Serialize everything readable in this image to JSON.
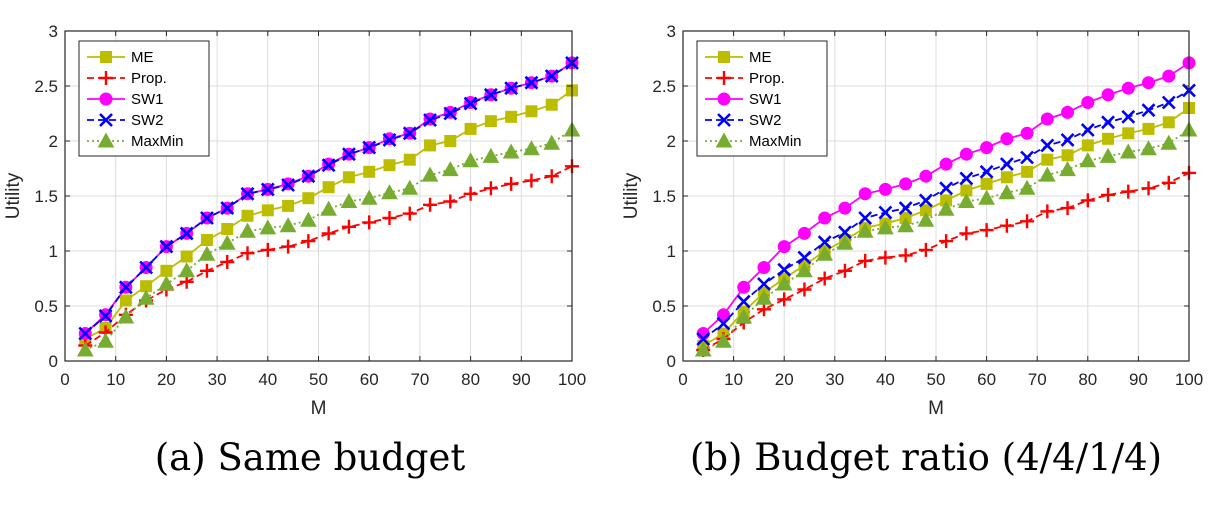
{
  "chart_data": [
    {
      "type": "line",
      "caption": "(a) Same budget",
      "xlabel": "M",
      "ylabel": "Utility",
      "xlim": [
        0,
        100
      ],
      "ylim": [
        0,
        3
      ],
      "xticks": [
        "0",
        "10",
        "20",
        "30",
        "40",
        "50",
        "60",
        "70",
        "80",
        "90",
        "100"
      ],
      "yticks": [
        "0",
        "0.5",
        "1",
        "1.5",
        "2",
        "2.5",
        "3"
      ],
      "grid": true,
      "legend_position": "top-left",
      "x": [
        4,
        8,
        12,
        16,
        20,
        24,
        28,
        32,
        36,
        40,
        44,
        48,
        52,
        56,
        60,
        64,
        68,
        72,
        76,
        80,
        84,
        88,
        92,
        96,
        100
      ],
      "series": [
        {
          "name": "ME",
          "color": "#bdbd00",
          "marker": "square",
          "linestyle": "solid",
          "values": [
            0.2,
            0.3,
            0.55,
            0.68,
            0.82,
            0.95,
            1.1,
            1.2,
            1.32,
            1.37,
            1.41,
            1.48,
            1.58,
            1.67,
            1.72,
            1.78,
            1.83,
            1.96,
            2.0,
            2.11,
            2.18,
            2.22,
            2.27,
            2.33,
            2.46
          ]
        },
        {
          "name": "Prop.",
          "color": "#ff0000",
          "marker": "plus",
          "linestyle": "dashed",
          "values": [
            0.14,
            0.26,
            0.42,
            0.55,
            0.65,
            0.72,
            0.82,
            0.9,
            0.98,
            1.01,
            1.04,
            1.09,
            1.16,
            1.22,
            1.26,
            1.3,
            1.34,
            1.42,
            1.45,
            1.52,
            1.57,
            1.61,
            1.64,
            1.68,
            1.77
          ]
        },
        {
          "name": "SW1",
          "color": "#ff00ff",
          "marker": "circle",
          "linestyle": "solid",
          "values": [
            0.25,
            0.42,
            0.67,
            0.85,
            1.04,
            1.16,
            1.3,
            1.39,
            1.52,
            1.56,
            1.61,
            1.68,
            1.79,
            1.88,
            1.94,
            2.02,
            2.07,
            2.2,
            2.26,
            2.35,
            2.42,
            2.48,
            2.53,
            2.59,
            2.71
          ]
        },
        {
          "name": "SW2",
          "color": "#0000ff",
          "marker": "x",
          "linestyle": "dashed",
          "values": [
            0.25,
            0.41,
            0.67,
            0.85,
            1.04,
            1.16,
            1.3,
            1.39,
            1.52,
            1.56,
            1.6,
            1.68,
            1.78,
            1.88,
            1.94,
            2.01,
            2.07,
            2.19,
            2.25,
            2.34,
            2.42,
            2.48,
            2.53,
            2.59,
            2.71
          ]
        },
        {
          "name": "MaxMin",
          "color": "#77ac30",
          "marker": "triangle",
          "linestyle": "dotted",
          "values": [
            0.1,
            0.18,
            0.4,
            0.57,
            0.7,
            0.82,
            0.97,
            1.07,
            1.18,
            1.21,
            1.23,
            1.28,
            1.38,
            1.45,
            1.48,
            1.53,
            1.57,
            1.69,
            1.74,
            1.82,
            1.86,
            1.9,
            1.93,
            1.98,
            2.1
          ]
        }
      ]
    },
    {
      "type": "line",
      "caption": "(b) Budget ratio (4/4/1/4)",
      "xlabel": "M",
      "ylabel": "Utility",
      "xlim": [
        0,
        100
      ],
      "ylim": [
        0,
        3
      ],
      "xticks": [
        "0",
        "10",
        "20",
        "30",
        "40",
        "50",
        "60",
        "70",
        "80",
        "90",
        "100"
      ],
      "yticks": [
        "0",
        "0.5",
        "1",
        "1.5",
        "2",
        "2.5",
        "3"
      ],
      "grid": true,
      "legend_position": "top-left",
      "x": [
        4,
        8,
        12,
        16,
        20,
        24,
        28,
        32,
        36,
        40,
        44,
        48,
        52,
        56,
        60,
        64,
        68,
        72,
        76,
        80,
        84,
        88,
        92,
        96,
        100
      ],
      "series": [
        {
          "name": "ME",
          "color": "#bdbd00",
          "marker": "square",
          "linestyle": "solid",
          "values": [
            0.14,
            0.25,
            0.45,
            0.62,
            0.75,
            0.87,
            1.0,
            1.1,
            1.21,
            1.25,
            1.3,
            1.37,
            1.46,
            1.55,
            1.61,
            1.67,
            1.72,
            1.83,
            1.87,
            1.96,
            2.02,
            2.07,
            2.11,
            2.17,
            2.3
          ]
        },
        {
          "name": "Prop.",
          "color": "#ff0000",
          "marker": "plus",
          "linestyle": "dashed",
          "values": [
            0.1,
            0.2,
            0.35,
            0.47,
            0.56,
            0.65,
            0.75,
            0.82,
            0.91,
            0.94,
            0.96,
            1.01,
            1.09,
            1.16,
            1.19,
            1.23,
            1.27,
            1.36,
            1.39,
            1.46,
            1.51,
            1.54,
            1.57,
            1.62,
            1.71
          ]
        },
        {
          "name": "SW1",
          "color": "#ff00ff",
          "marker": "circle",
          "linestyle": "solid",
          "values": [
            0.25,
            0.42,
            0.67,
            0.85,
            1.04,
            1.16,
            1.3,
            1.39,
            1.52,
            1.56,
            1.61,
            1.68,
            1.79,
            1.88,
            1.94,
            2.02,
            2.07,
            2.2,
            2.26,
            2.35,
            2.42,
            2.48,
            2.53,
            2.59,
            2.71
          ]
        },
        {
          "name": "SW2",
          "color": "#0000ff",
          "marker": "x",
          "linestyle": "dashed",
          "values": [
            0.2,
            0.34,
            0.54,
            0.7,
            0.83,
            0.94,
            1.08,
            1.17,
            1.3,
            1.35,
            1.39,
            1.46,
            1.57,
            1.66,
            1.72,
            1.79,
            1.85,
            1.96,
            2.01,
            2.1,
            2.17,
            2.22,
            2.28,
            2.35,
            2.46
          ]
        },
        {
          "name": "MaxMin",
          "color": "#77ac30",
          "marker": "triangle",
          "linestyle": "dotted",
          "values": [
            0.1,
            0.18,
            0.4,
            0.57,
            0.7,
            0.82,
            0.97,
            1.07,
            1.18,
            1.21,
            1.23,
            1.28,
            1.38,
            1.45,
            1.48,
            1.53,
            1.57,
            1.69,
            1.74,
            1.82,
            1.86,
            1.9,
            1.93,
            1.98,
            2.1
          ]
        }
      ]
    }
  ]
}
